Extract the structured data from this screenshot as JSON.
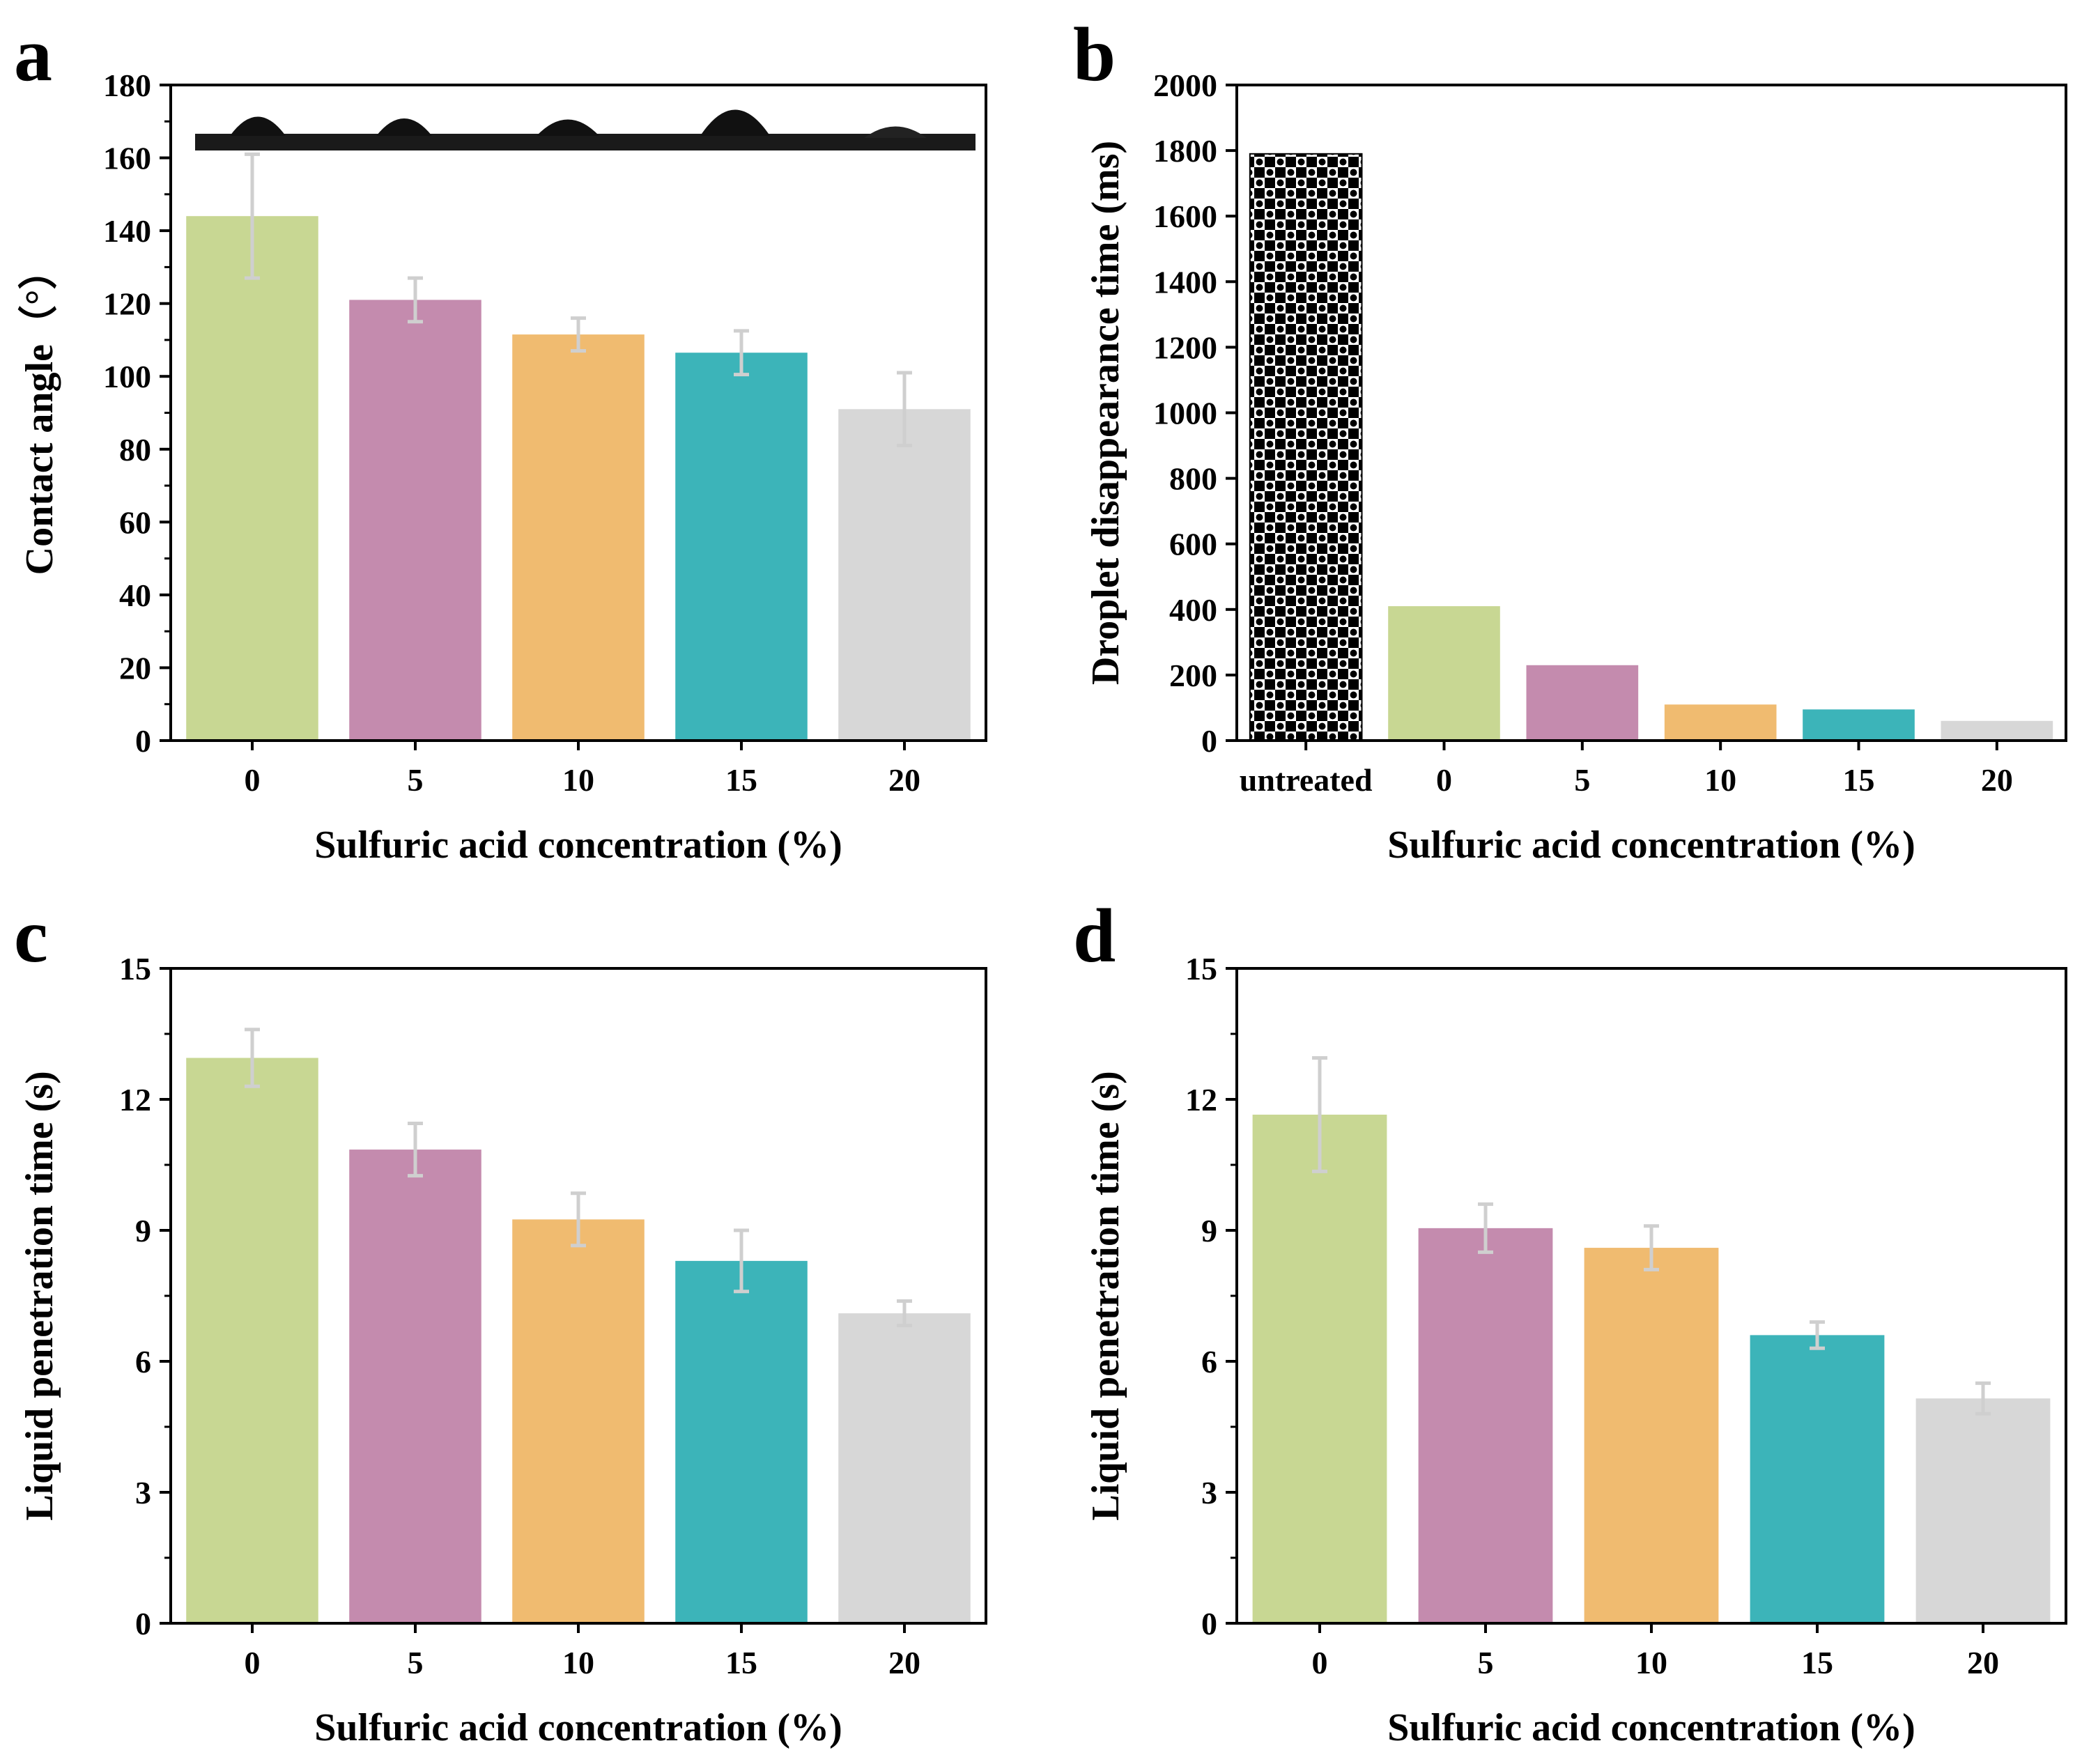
{
  "colors": {
    "green": "#c8d793",
    "pink": "#c48bae",
    "orange": "#f0bb70",
    "teal": "#3cb4b9",
    "gray": "#d7d7d7",
    "error_bar": "#cfcfcf"
  },
  "chart_data": [
    {
      "panel": "a",
      "type": "bar",
      "categories": [
        "0",
        "5",
        "10",
        "15",
        "20"
      ],
      "values": [
        144,
        121,
        111.5,
        106.5,
        91
      ],
      "errors": [
        17,
        6,
        4.5,
        6,
        10
      ],
      "bar_colors": [
        "green",
        "pink",
        "orange",
        "teal",
        "gray"
      ],
      "xlabel": "Sulfuric acid concentration (%)",
      "ylabel": "Contact angle（°）",
      "ylim": [
        0,
        180
      ],
      "yticks": [
        "0",
        "20",
        "40",
        "60",
        "80",
        "100",
        "120",
        "140",
        "160",
        "180"
      ],
      "minor_ticks": true,
      "inset": "droplet-photo-strip"
    },
    {
      "panel": "b",
      "type": "bar",
      "categories": [
        "untreated",
        "0",
        "5",
        "10",
        "15",
        "20"
      ],
      "values": [
        1790,
        410,
        230,
        110,
        95,
        60
      ],
      "bar_colors": [
        "pattern",
        "green",
        "pink",
        "orange",
        "teal",
        "gray"
      ],
      "xlabel": "Sulfuric acid concentration (%)",
      "ylabel": "Droplet disappearance time (ms)",
      "ylim": [
        0,
        2000
      ],
      "yticks": [
        "0",
        "200",
        "400",
        "600",
        "800",
        "1000",
        "1200",
        "1400",
        "1600",
        "1800",
        "2000"
      ],
      "minor_ticks": false
    },
    {
      "panel": "c",
      "type": "bar",
      "categories": [
        "0",
        "5",
        "10",
        "15",
        "20"
      ],
      "values": [
        12.95,
        10.85,
        9.25,
        8.3,
        7.1
      ],
      "errors": [
        0.65,
        0.6,
        0.6,
        0.7,
        0.28
      ],
      "bar_colors": [
        "green",
        "pink",
        "orange",
        "teal",
        "gray"
      ],
      "xlabel": "Sulfuric acid concentration (%)",
      "ylabel": "Liquid penetration time (s)",
      "ylim": [
        0,
        15
      ],
      "yticks": [
        "0",
        "3",
        "6",
        "9",
        "12",
        "15"
      ],
      "minor_ticks": true
    },
    {
      "panel": "d",
      "type": "bar",
      "categories": [
        "0",
        "5",
        "10",
        "15",
        "20"
      ],
      "values": [
        11.65,
        9.05,
        8.6,
        6.6,
        5.15
      ],
      "errors": [
        1.3,
        0.55,
        0.5,
        0.3,
        0.35
      ],
      "bar_colors": [
        "green",
        "pink",
        "orange",
        "teal",
        "gray"
      ],
      "xlabel": "Sulfuric acid concentration (%)",
      "ylabel": "Liquid penetration time (s)",
      "ylim": [
        0,
        15
      ],
      "yticks": [
        "0",
        "3",
        "6",
        "9",
        "12",
        "15"
      ],
      "minor_ticks": true
    }
  ]
}
